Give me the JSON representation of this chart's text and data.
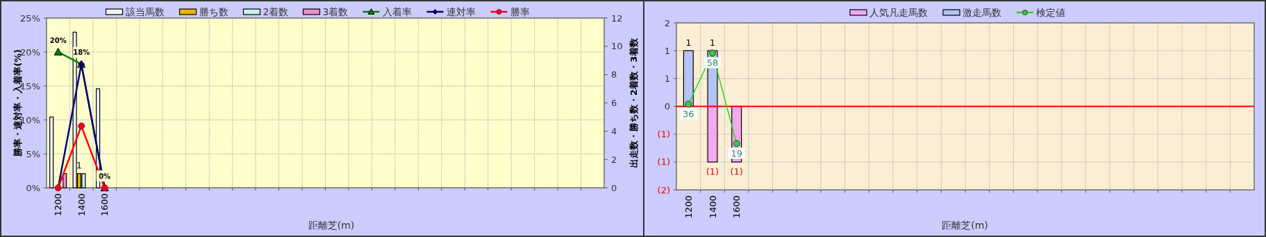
{
  "chart_data": [
    {
      "type": "bar",
      "categories": [
        "1200",
        "1400",
        "1600",
        null,
        null,
        null,
        null,
        null,
        null,
        null,
        null,
        null,
        null,
        null,
        null,
        null,
        null,
        null,
        null,
        null,
        null,
        null,
        null,
        null
      ],
      "xlabel": "距離芝(m)",
      "ylabel": "勝率・連対率・入着率(%)",
      "y2label": "出走数・勝ち数・2着数・3着数",
      "ylim": [
        0,
        25
      ],
      "yticks": [
        {
          "value": 0,
          "label": "0%"
        },
        {
          "value": 5,
          "label": "5%"
        },
        {
          "value": 10,
          "label": "10%"
        },
        {
          "value": 15,
          "label": "15%"
        },
        {
          "value": 20,
          "label": "20%"
        },
        {
          "value": 25,
          "label": "25%"
        }
      ],
      "y2lim": [
        0,
        12
      ],
      "y2ticks": [
        0,
        2,
        4,
        6,
        8,
        10,
        12
      ],
      "grid": true,
      "legend": "top",
      "series": [
        {
          "name": "該当馬数",
          "type": "bar",
          "axis": "y2",
          "color": "#f4f4f4",
          "values": [
            5,
            11,
            7,
            null,
            null,
            null,
            null,
            null,
            null,
            null,
            null,
            null,
            null,
            null,
            null,
            null,
            null,
            null,
            null,
            null,
            null,
            null,
            null,
            null
          ]
        },
        {
          "name": "勝ち数",
          "type": "bar",
          "axis": "y2",
          "color": "#e6b400",
          "values": [
            0,
            1,
            0,
            null,
            null,
            null,
            null,
            null,
            null,
            null,
            null,
            null,
            null,
            null,
            null,
            null,
            null,
            null,
            null,
            null,
            null,
            null,
            null,
            null
          ],
          "value_labels": [
            null,
            "1",
            null,
            null,
            null,
            null,
            null,
            null,
            null,
            null,
            null,
            null,
            null,
            null,
            null,
            null,
            null,
            null,
            null,
            null,
            null,
            null,
            null,
            null
          ]
        },
        {
          "name": "2着数",
          "type": "bar",
          "axis": "y2",
          "color": "#c8f0f0",
          "values": [
            0,
            1,
            0,
            null,
            null,
            null,
            null,
            null,
            null,
            null,
            null,
            null,
            null,
            null,
            null,
            null,
            null,
            null,
            null,
            null,
            null,
            null,
            null,
            null
          ]
        },
        {
          "name": "3着数",
          "type": "bar",
          "axis": "y2",
          "color": "#e890c8",
          "values": [
            1,
            0,
            0,
            null,
            null,
            null,
            null,
            null,
            null,
            null,
            null,
            null,
            null,
            null,
            null,
            null,
            null,
            null,
            null,
            null,
            null,
            null,
            null,
            null
          ]
        },
        {
          "name": "入着率",
          "type": "line",
          "color": "#008000",
          "marker": "triangle",
          "values": [
            20,
            18.2,
            0,
            null,
            null,
            null,
            null,
            null,
            null,
            null,
            null,
            null,
            null,
            null,
            null,
            null,
            null,
            null,
            null,
            null,
            null,
            null,
            null,
            null
          ],
          "value_labels": [
            "20%",
            "18%",
            "0%",
            null,
            null,
            null,
            null,
            null,
            null,
            null,
            null,
            null,
            null,
            null,
            null,
            null,
            null,
            null,
            null,
            null,
            null,
            null,
            null,
            null
          ]
        },
        {
          "name": "連対率",
          "type": "line",
          "color": "#000080",
          "marker": "diamond",
          "values": [
            0,
            18.2,
            0,
            null,
            null,
            null,
            null,
            null,
            null,
            null,
            null,
            null,
            null,
            null,
            null,
            null,
            null,
            null,
            null,
            null,
            null,
            null,
            null,
            null
          ]
        },
        {
          "name": "勝率",
          "type": "line",
          "color": "#ff0000",
          "marker": "circle",
          "values": [
            0,
            9.1,
            0,
            null,
            null,
            null,
            null,
            null,
            null,
            null,
            null,
            null,
            null,
            null,
            null,
            null,
            null,
            null,
            null,
            null,
            null,
            null,
            null,
            null
          ]
        }
      ]
    },
    {
      "type": "bar",
      "stacked": true,
      "categories": [
        "1200",
        "1400",
        "1600",
        null,
        null,
        null,
        null,
        null,
        null,
        null,
        null,
        null,
        null,
        null,
        null,
        null,
        null,
        null,
        null,
        null,
        null,
        null,
        null,
        null
      ],
      "xlabel": "距離芝(m)",
      "ylim": [
        -1.5,
        1.5
      ],
      "yticks": [
        {
          "value": -1.5,
          "label": "(2)"
        },
        {
          "value": -1,
          "label": "(1)"
        },
        {
          "value": -0.5,
          "label": "(1)"
        },
        0,
        {
          "value": 0.5,
          "label": "1"
        },
        1,
        {
          "value": 1.5,
          "label": "2"
        }
      ],
      "y2lim": [
        -1,
        71
      ],
      "grid": true,
      "legend": "top",
      "ref_lines": [
        {
          "axis": "y",
          "value": 0,
          "color": "#ff0000"
        }
      ],
      "series": [
        {
          "name": "人気凡走馬数",
          "type": "bar",
          "color": "#f4a8f0",
          "values": [
            0,
            -1,
            -1,
            null,
            null,
            null,
            null,
            null,
            null,
            null,
            null,
            null,
            null,
            null,
            null,
            null,
            null,
            null,
            null,
            null,
            null,
            null,
            null,
            null
          ],
          "value_labels": [
            null,
            "(1)",
            "(1)",
            null,
            null,
            null,
            null,
            null,
            null,
            null,
            null,
            null,
            null,
            null,
            null,
            null,
            null,
            null,
            null,
            null,
            null,
            null,
            null,
            null
          ]
        },
        {
          "name": "激走馬数",
          "type": "bar",
          "color": "#b4c4f4",
          "values": [
            1,
            1,
            0,
            null,
            null,
            null,
            null,
            null,
            null,
            null,
            null,
            null,
            null,
            null,
            null,
            null,
            null,
            null,
            null,
            null,
            null,
            null,
            null,
            null
          ],
          "value_labels": [
            "1",
            "1",
            null,
            null,
            null,
            null,
            null,
            null,
            null,
            null,
            null,
            null,
            null,
            null,
            null,
            null,
            null,
            null,
            null,
            null,
            null,
            null,
            null,
            null
          ]
        },
        {
          "name": "検定値",
          "type": "line",
          "axis": "y2",
          "color": "#22dd22",
          "marker": "circle",
          "values": [
            36,
            58,
            19,
            null,
            null,
            null,
            null,
            null,
            null,
            null,
            null,
            null,
            null,
            null,
            null,
            null,
            null,
            null,
            null,
            null,
            null,
            null,
            null,
            null
          ],
          "value_labels": [
            "36",
            "58",
            "19",
            null,
            null,
            null,
            null,
            null,
            null,
            null,
            null,
            null,
            null,
            null,
            null,
            null,
            null,
            null,
            null,
            null,
            null,
            null,
            null,
            null
          ]
        }
      ]
    }
  ]
}
